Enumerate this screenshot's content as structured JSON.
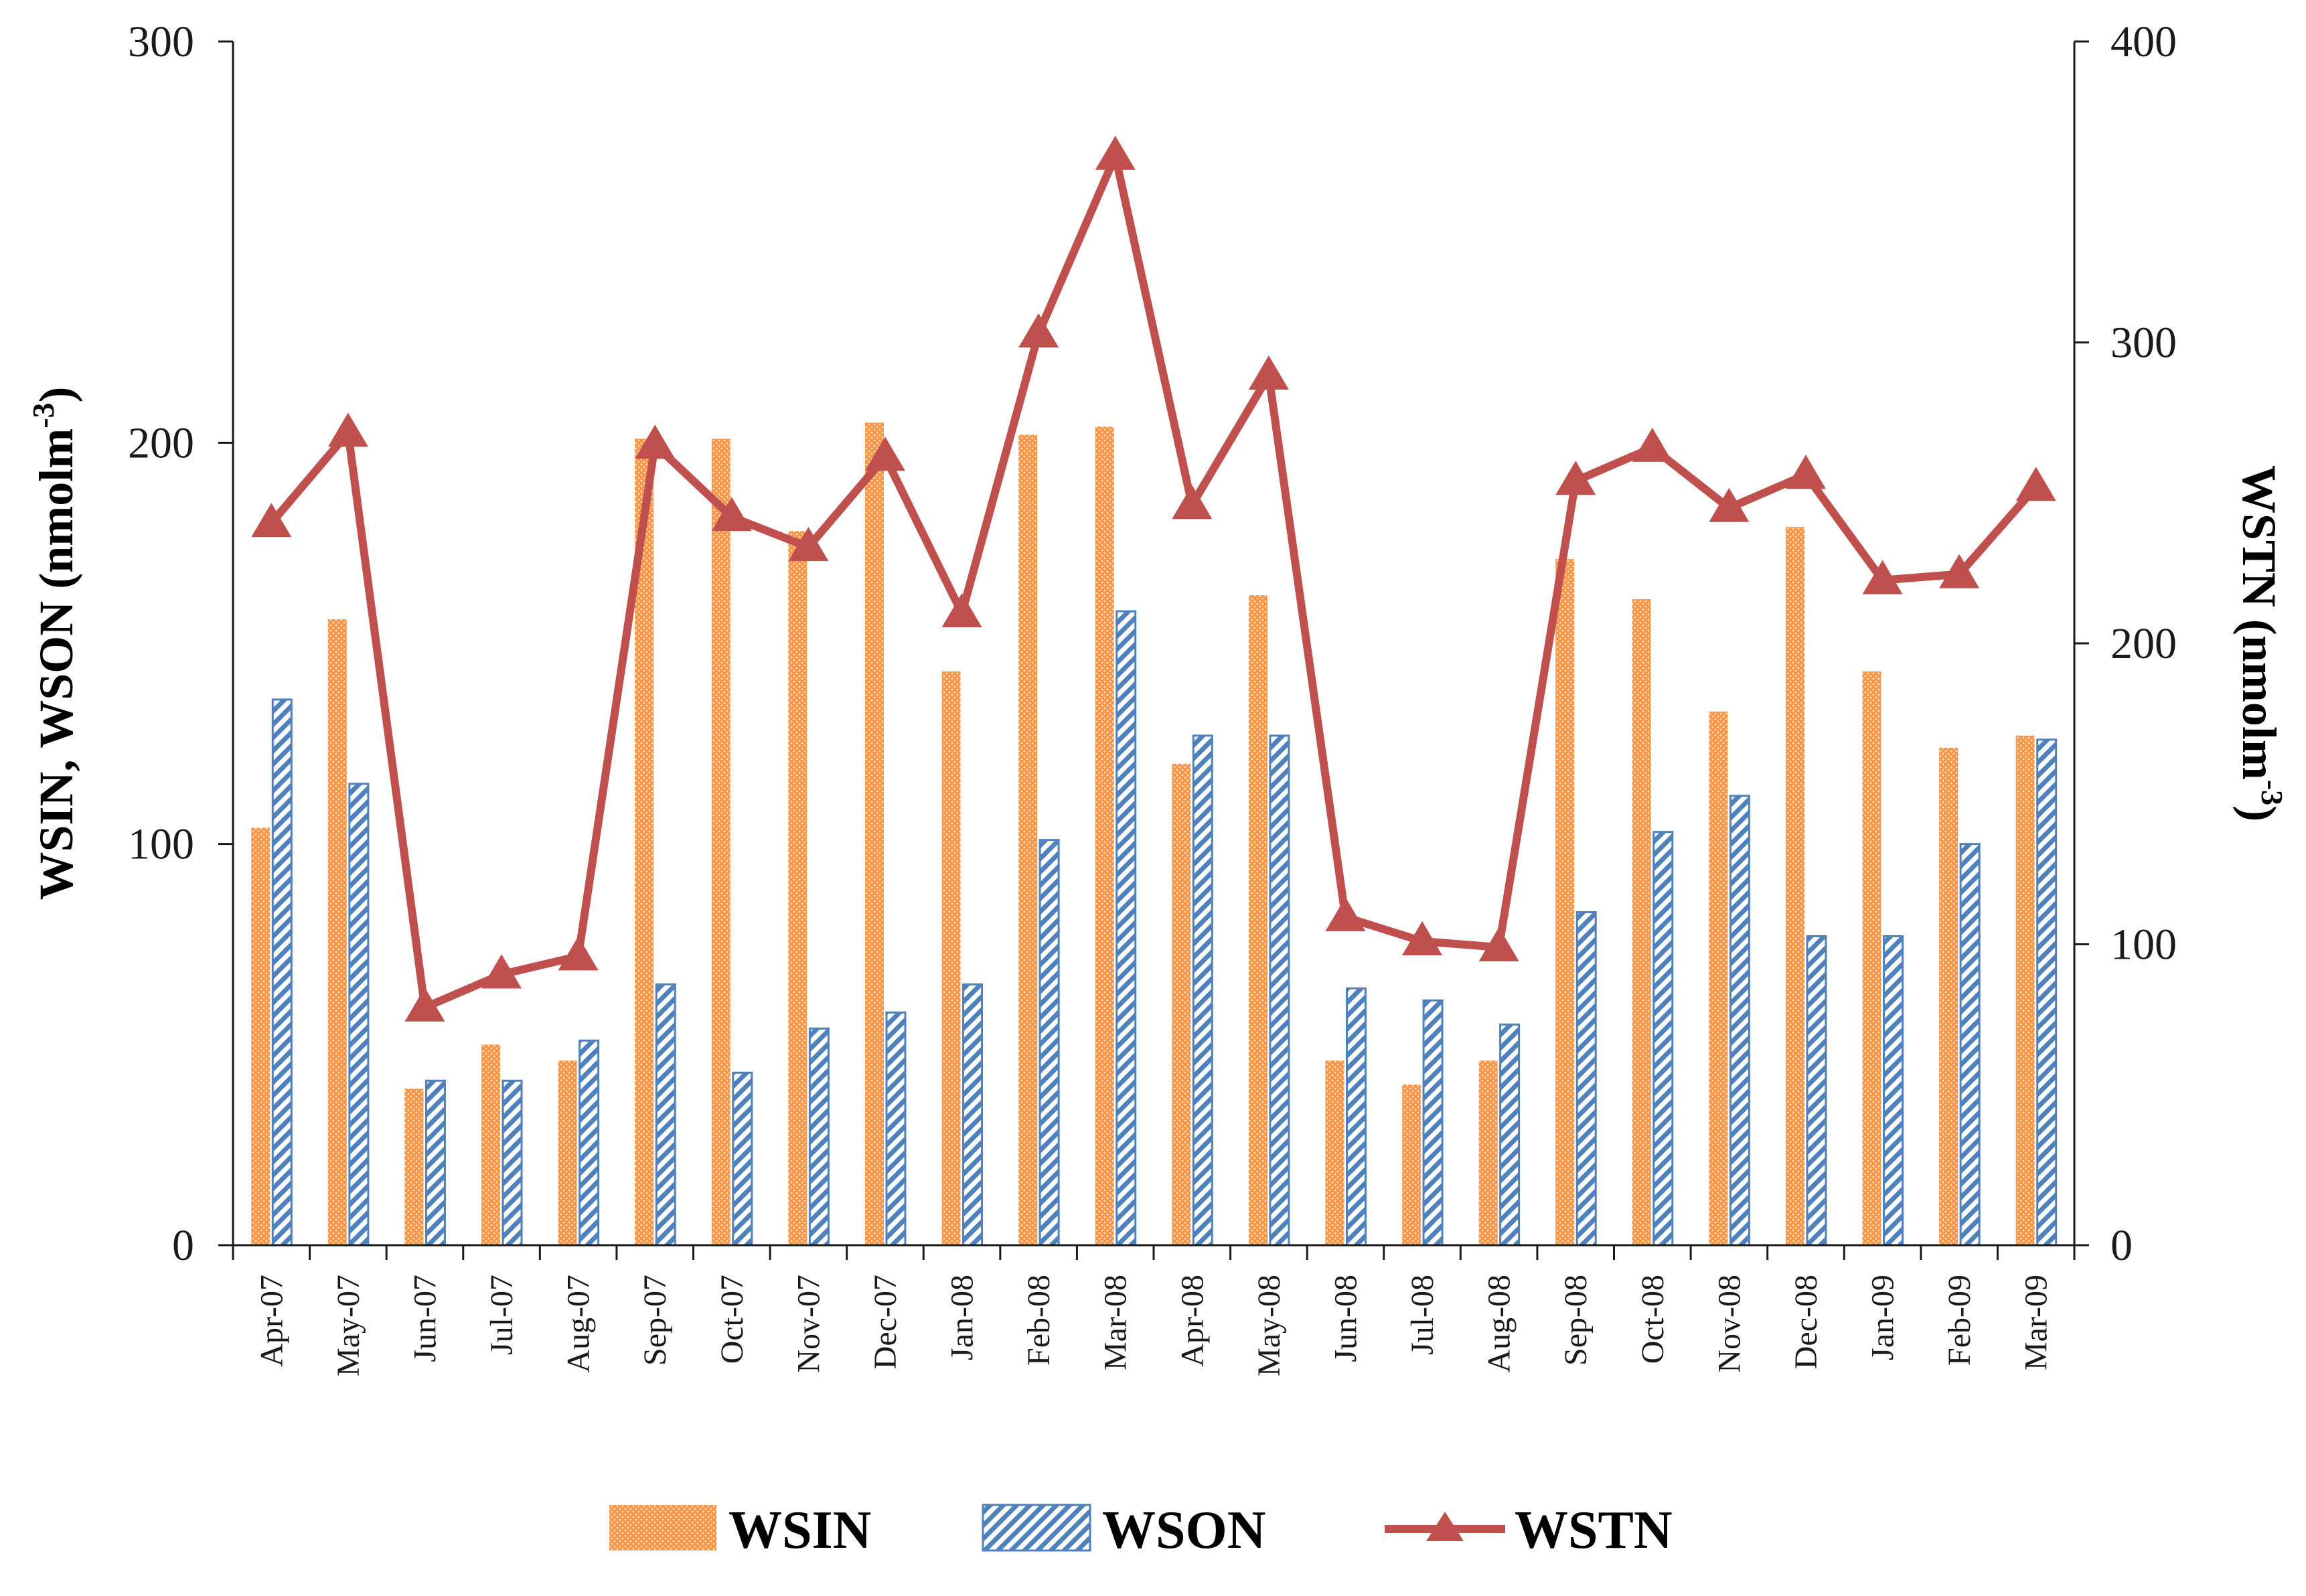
{
  "chart_data": {
    "type": "bar",
    "categories": [
      "Apr-07",
      "May-07",
      "Jun-07",
      "Jul-07",
      "Aug-07",
      "Sep-07",
      "Oct-07",
      "Nov-07",
      "Dec-07",
      "Jan-08",
      "Feb-08",
      "Mar-08",
      "Apr-08",
      "May-08",
      "Jun-08",
      "Jul-08",
      "Aug-08",
      "Sep-08",
      "Oct-08",
      "Nov-08",
      "Dec-08",
      "Jan-09",
      "Feb-09",
      "Mar-09"
    ],
    "series": [
      {
        "name": "WSIN",
        "type": "bar",
        "axis": "left",
        "color": "#f79646",
        "values": [
          104,
          156,
          39,
          50,
          46,
          201,
          201,
          178,
          205,
          143,
          202,
          204,
          120,
          162,
          46,
          40,
          46,
          171,
          161,
          133,
          179,
          143,
          124,
          127
        ]
      },
      {
        "name": "WSON",
        "type": "bar",
        "axis": "left",
        "color": "#4f81bd",
        "values": [
          136,
          115,
          41,
          41,
          51,
          65,
          43,
          54,
          58,
          65,
          101,
          158,
          127,
          127,
          64,
          61,
          55,
          83,
          103,
          112,
          77,
          77,
          100,
          126
        ]
      },
      {
        "name": "WSTN",
        "type": "line",
        "axis": "right",
        "color": "#c0504d",
        "marker": "triangle",
        "values": [
          240,
          270,
          79,
          90,
          96,
          266,
          242,
          232,
          262,
          210,
          303,
          362,
          246,
          289,
          109,
          101,
          99,
          254,
          265,
          245,
          256,
          221,
          223,
          252
        ]
      }
    ],
    "ylabel": "WSIN, WSON (nmolm-3)",
    "ylabel_main": "WSIN, WSON (nmolm",
    "ylabel_sup": "-3",
    "ylabel_end": ")",
    "y2label": "WSTN (nmolm-3)",
    "y2label_main": "WSTN (nmolm",
    "y2label_sup": "-3",
    "y2label_end": ")",
    "ylim": [
      0,
      300
    ],
    "yticks": [
      0,
      100,
      200,
      300
    ],
    "y2lim": [
      0,
      400
    ],
    "y2ticks": [
      0,
      100,
      200,
      300,
      400
    ],
    "grid": false,
    "legend_position": "bottom"
  },
  "legend": {
    "wsin": "WSIN",
    "wson": "WSON",
    "wstn": "WSTN"
  }
}
